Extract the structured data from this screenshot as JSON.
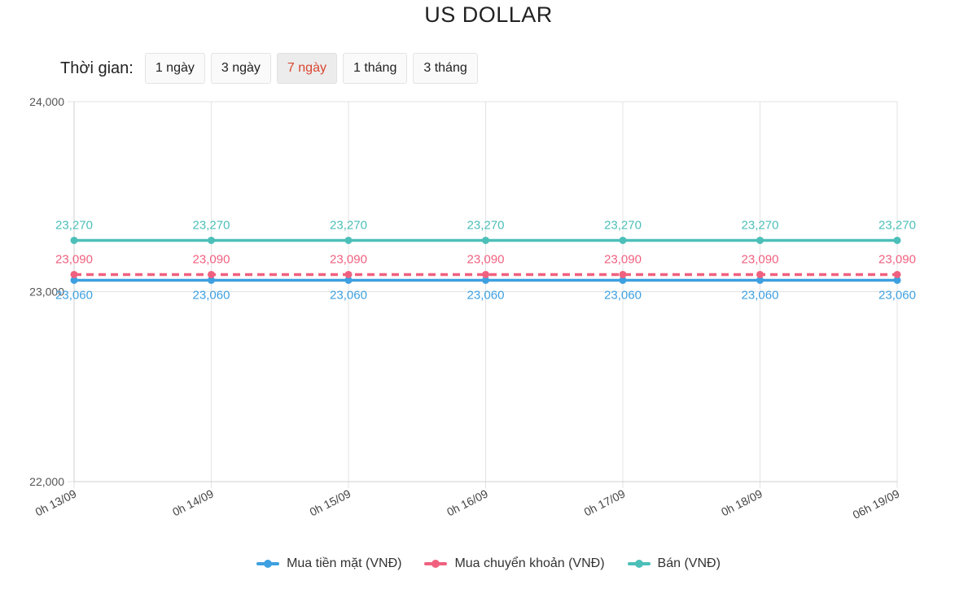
{
  "header": {
    "title": "US DOLLAR"
  },
  "time_filter": {
    "label": "Thời gian:",
    "options": [
      "1 ngày",
      "3 ngày",
      "7 ngày",
      "1 tháng",
      "3 tháng"
    ],
    "selected": "7 ngày"
  },
  "chart_data": {
    "type": "line",
    "title": "US DOLLAR",
    "categories": [
      "0h 13/09",
      "0h 14/09",
      "0h 15/09",
      "0h 16/09",
      "0h 17/09",
      "0h 18/09",
      "06h 19/09"
    ],
    "ylim": [
      22000,
      24000
    ],
    "y_ticks": [
      22000,
      23000,
      24000
    ],
    "y_tick_labels": [
      "22,000",
      "23,000",
      "24,000"
    ],
    "grid": true,
    "legend_position": "bottom",
    "series": [
      {
        "name": "Mua tiền mặt (VNĐ)",
        "color": "#3ea0e0",
        "style": "solid",
        "values": [
          23060,
          23060,
          23060,
          23060,
          23060,
          23060,
          23060
        ],
        "labels": [
          "23,060",
          "23,060",
          "23,060",
          "23,060",
          "23,060",
          "23,060",
          "23,060"
        ]
      },
      {
        "name": "Mua chuyển khoản (VNĐ)",
        "color": "#f0617f",
        "style": "dashed",
        "values": [
          23090,
          23090,
          23090,
          23090,
          23090,
          23090,
          23090
        ],
        "labels": [
          "23,090",
          "23,090",
          "23,090",
          "23,090",
          "23,090",
          "23,090",
          "23,090"
        ]
      },
      {
        "name": "Bán (VNĐ)",
        "color": "#4cbfb9",
        "style": "solid",
        "values": [
          23270,
          23270,
          23270,
          23270,
          23270,
          23270,
          23270
        ],
        "labels": [
          "23,270",
          "23,270",
          "23,270",
          "23,270",
          "23,270",
          "23,270",
          "23,270"
        ]
      }
    ]
  }
}
